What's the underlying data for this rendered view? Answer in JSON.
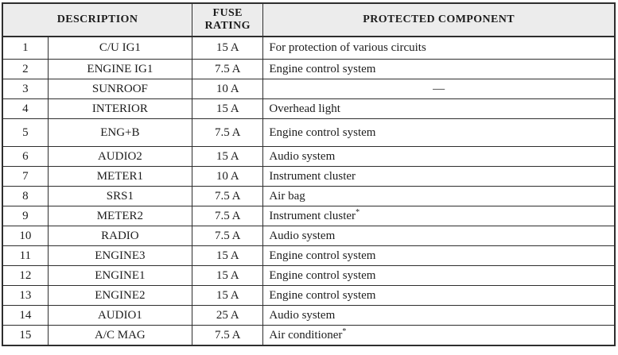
{
  "table": {
    "columns": {
      "description": "DESCRIPTION",
      "fuse_rating": "FUSE RATING",
      "protected_component": "PROTECTED COMPONENT"
    },
    "rows": [
      {
        "no": "1",
        "description": "C/U IG1",
        "rating": "15 A",
        "component": "For protection of various circuits"
      },
      {
        "no": "2",
        "description": "ENGINE IG1",
        "rating": "7.5 A",
        "component": "Engine control system"
      },
      {
        "no": "3",
        "description": "SUNROOF",
        "rating": "10 A",
        "component": "—"
      },
      {
        "no": "4",
        "description": "INTERIOR",
        "rating": "15 A",
        "component": "Overhead light"
      },
      {
        "no": "5",
        "description": "ENG+B",
        "rating": "7.5 A",
        "component": "Engine control system"
      },
      {
        "no": "6",
        "description": "AUDIO2",
        "rating": "15 A",
        "component": "Audio system"
      },
      {
        "no": "7",
        "description": "METER1",
        "rating": "10 A",
        "component": "Instrument cluster"
      },
      {
        "no": "8",
        "description": "SRS1",
        "rating": "7.5 A",
        "component": "Air bag"
      },
      {
        "no": "9",
        "description": "METER2",
        "rating": "7.5 A",
        "component": "Instrument cluster",
        "note": "*"
      },
      {
        "no": "10",
        "description": "RADIO",
        "rating": "7.5 A",
        "component": "Audio system"
      },
      {
        "no": "11",
        "description": "ENGINE3",
        "rating": "15 A",
        "component": "Engine control system"
      },
      {
        "no": "12",
        "description": "ENGINE1",
        "rating": "15 A",
        "component": "Engine control system"
      },
      {
        "no": "13",
        "description": "ENGINE2",
        "rating": "15 A",
        "component": "Engine control system"
      },
      {
        "no": "14",
        "description": "AUDIO1",
        "rating": "25 A",
        "component": "Audio system"
      },
      {
        "no": "15",
        "description": "A/C MAG",
        "rating": "7.5 A",
        "component": "Air conditioner",
        "note": "*"
      }
    ]
  },
  "colors": {
    "header_bg": "#ececec",
    "border": "#2e2e2e",
    "text": "#1d1d1d",
    "body_bg": "#ffffff"
  }
}
